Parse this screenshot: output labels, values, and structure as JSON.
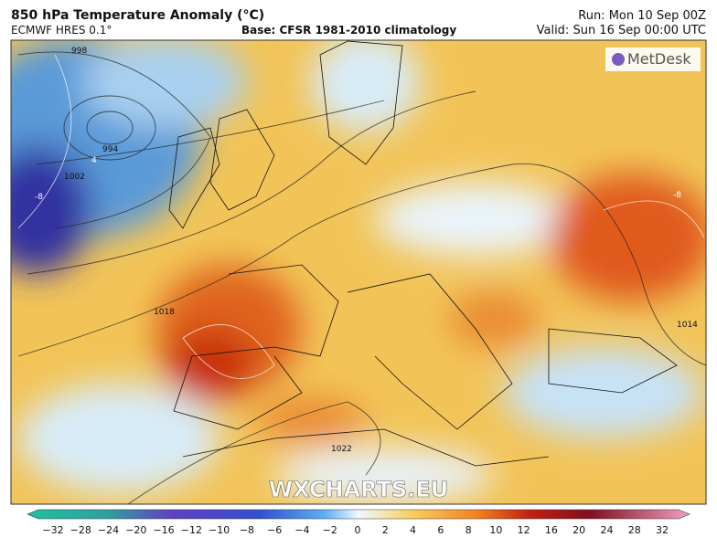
{
  "header": {
    "title": "850 hPa Temperature Anomaly (°C)",
    "model": "ECMWF HRES 0.1°",
    "base": "Base: CFSR 1981-2010 climatology",
    "run": "Run: Mon 10 Sep 00Z",
    "valid": "Valid: Sun 16 Sep 00:00 UTC"
  },
  "map": {
    "brand": "MetDesk",
    "watermark": "WXCHARTS.EU",
    "contour_labels": [
      "998",
      "994",
      "1002",
      "1018",
      "1014",
      "1022",
      "-8",
      "-8",
      "4"
    ]
  },
  "colorbar": {
    "ticks": [
      "−32",
      "−28",
      "−24",
      "−20",
      "−16",
      "−12",
      "−10",
      "−8",
      "−6",
      "−4",
      "−2",
      "0",
      "2",
      "4",
      "6",
      "8",
      "10",
      "12",
      "16",
      "20",
      "24",
      "28",
      "32"
    ]
  }
}
